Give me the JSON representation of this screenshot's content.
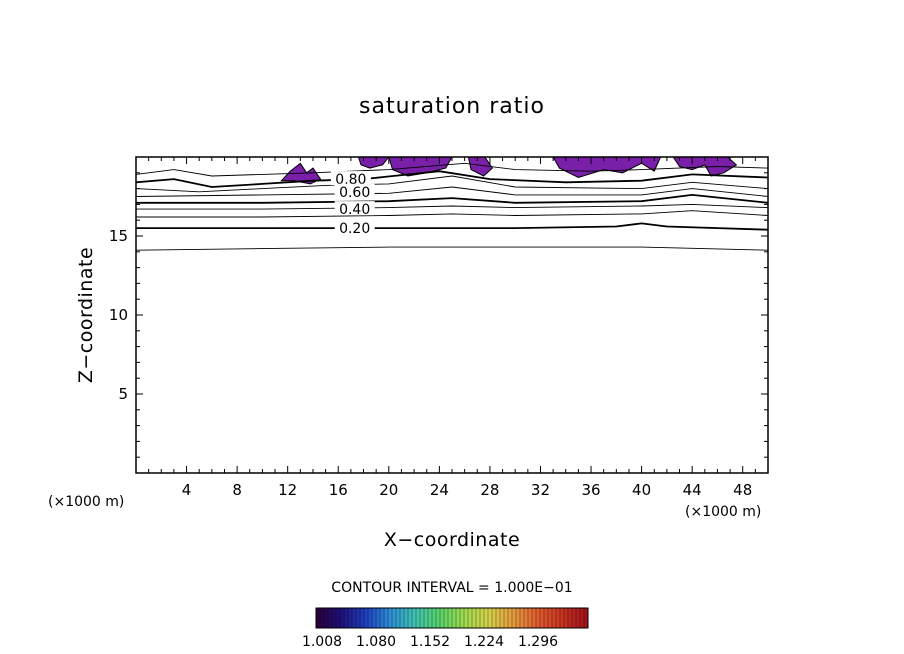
{
  "chart_data": {
    "type": "contour",
    "title": "saturation ratio",
    "xlabel": "X−coordinate",
    "ylabel": "Z−coordinate",
    "x_unit": "(×1000 m)",
    "z_unit": "(×1000 m)",
    "xlim": [
      0,
      50
    ],
    "ylim": [
      0,
      20
    ],
    "x_ticks": [
      4,
      8,
      12,
      16,
      20,
      24,
      28,
      32,
      36,
      40,
      44,
      48
    ],
    "x_tick_labels": [
      "4",
      "8",
      "12",
      "16",
      "20",
      "24",
      "28",
      "32",
      "36",
      "40",
      "44",
      "48"
    ],
    "y_ticks": [
      5,
      10,
      15
    ],
    "y_tick_labels": [
      "5",
      "10",
      "15"
    ],
    "contour_interval_text": "CONTOUR INTERVAL = 1.000E−01",
    "contour_labels": [
      {
        "text": "0.80",
        "x": 17.0,
        "z": 18.6
      },
      {
        "text": "0.60",
        "x": 17.3,
        "z": 17.8
      },
      {
        "text": "0.40",
        "x": 17.3,
        "z": 16.7
      },
      {
        "text": "0.20",
        "x": 17.3,
        "z": 15.5
      }
    ],
    "contours": [
      {
        "level": 0.1,
        "bold": false,
        "points": [
          [
            0,
            14.1
          ],
          [
            10,
            14.2
          ],
          [
            20,
            14.3
          ],
          [
            30,
            14.3
          ],
          [
            40,
            14.3
          ],
          [
            50,
            14.1
          ]
        ]
      },
      {
        "level": 0.2,
        "bold": true,
        "points": [
          [
            0,
            15.5
          ],
          [
            10,
            15.5
          ],
          [
            20,
            15.5
          ],
          [
            30,
            15.5
          ],
          [
            38,
            15.6
          ],
          [
            40,
            15.8
          ],
          [
            42,
            15.6
          ],
          [
            50,
            15.4
          ]
        ]
      },
      {
        "level": 0.3,
        "bold": false,
        "points": [
          [
            0,
            16.2
          ],
          [
            10,
            16.2
          ],
          [
            20,
            16.3
          ],
          [
            25,
            16.4
          ],
          [
            30,
            16.3
          ],
          [
            40,
            16.4
          ],
          [
            44,
            16.6
          ],
          [
            50,
            16.3
          ]
        ]
      },
      {
        "level": 0.4,
        "bold": false,
        "points": [
          [
            0,
            16.7
          ],
          [
            10,
            16.7
          ],
          [
            20,
            16.8
          ],
          [
            25,
            16.9
          ],
          [
            30,
            16.8
          ],
          [
            40,
            16.9
          ],
          [
            44,
            17.0
          ],
          [
            50,
            16.8
          ]
        ]
      },
      {
        "level": 0.5,
        "bold": true,
        "points": [
          [
            0,
            17.1
          ],
          [
            10,
            17.1
          ],
          [
            20,
            17.2
          ],
          [
            25,
            17.4
          ],
          [
            30,
            17.1
          ],
          [
            40,
            17.2
          ],
          [
            44,
            17.6
          ],
          [
            50,
            17.1
          ]
        ]
      },
      {
        "level": 0.6,
        "bold": false,
        "points": [
          [
            0,
            17.5
          ],
          [
            10,
            17.6
          ],
          [
            20,
            17.7
          ],
          [
            25,
            18.1
          ],
          [
            30,
            17.6
          ],
          [
            40,
            17.6
          ],
          [
            44,
            18.0
          ],
          [
            50,
            17.5
          ]
        ]
      },
      {
        "level": 0.7,
        "bold": false,
        "points": [
          [
            0,
            18.0
          ],
          [
            5,
            17.8
          ],
          [
            10,
            18.0
          ],
          [
            15,
            18.2
          ],
          [
            20,
            18.3
          ],
          [
            25,
            18.8
          ],
          [
            30,
            18.1
          ],
          [
            40,
            18.0
          ],
          [
            44,
            18.4
          ],
          [
            50,
            18.0
          ]
        ]
      },
      {
        "level": 0.8,
        "bold": true,
        "points": [
          [
            0,
            18.4
          ],
          [
            3,
            18.6
          ],
          [
            6,
            18.1
          ],
          [
            10,
            18.3
          ],
          [
            14,
            18.5
          ],
          [
            18,
            18.6
          ],
          [
            24,
            19.1
          ],
          [
            28,
            18.6
          ],
          [
            34,
            18.4
          ],
          [
            40,
            18.5
          ],
          [
            44,
            18.9
          ],
          [
            50,
            18.7
          ]
        ]
      },
      {
        "level": 0.9,
        "bold": false,
        "points": [
          [
            0,
            18.9
          ],
          [
            3,
            19.2
          ],
          [
            6,
            18.8
          ],
          [
            10,
            18.9
          ],
          [
            14,
            19.0
          ],
          [
            20,
            19.2
          ],
          [
            26,
            19.6
          ],
          [
            30,
            19.2
          ],
          [
            36,
            19.1
          ],
          [
            40,
            19.2
          ],
          [
            46,
            19.4
          ],
          [
            50,
            19.3
          ]
        ]
      }
    ],
    "supersaturation_regions": [
      {
        "points": [
          [
            11.5,
            18.5
          ],
          [
            12.2,
            19.1
          ],
          [
            13.0,
            19.6
          ],
          [
            13.5,
            19.0
          ],
          [
            14.0,
            19.3
          ],
          [
            14.6,
            18.6
          ],
          [
            13.8,
            18.3
          ],
          [
            12.5,
            18.5
          ]
        ]
      },
      {
        "points": [
          [
            17.6,
            20
          ],
          [
            17.8,
            19.5
          ],
          [
            18.5,
            19.3
          ],
          [
            19.5,
            19.5
          ],
          [
            20.0,
            20
          ]
        ]
      },
      {
        "points": [
          [
            20.0,
            20
          ],
          [
            20.3,
            19.2
          ],
          [
            21.5,
            18.8
          ],
          [
            23.0,
            19.0
          ],
          [
            24.5,
            19.3
          ],
          [
            25.0,
            20
          ]
        ]
      },
      {
        "points": [
          [
            26.3,
            20
          ],
          [
            26.5,
            19.2
          ],
          [
            27.5,
            18.8
          ],
          [
            28.2,
            19.3
          ],
          [
            27.6,
            20
          ]
        ]
      },
      {
        "points": [
          [
            33.0,
            20
          ],
          [
            33.5,
            19.3
          ],
          [
            35.0,
            18.7
          ],
          [
            37.0,
            19.2
          ],
          [
            38.5,
            19.0
          ],
          [
            40.0,
            19.6
          ],
          [
            41.0,
            19.1
          ],
          [
            41.5,
            20
          ]
        ]
      },
      {
        "points": [
          [
            42.5,
            20
          ],
          [
            43.0,
            19.4
          ],
          [
            44.0,
            19.2
          ],
          [
            45.0,
            19.5
          ],
          [
            45.5,
            18.8
          ],
          [
            46.5,
            19.0
          ],
          [
            47.5,
            19.5
          ],
          [
            46.8,
            20
          ]
        ]
      }
    ],
    "colorbar": {
      "tick_labels": [
        "1.008",
        "1.080",
        "1.152",
        "1.224",
        "1.296"
      ],
      "colors": [
        "#2b0038",
        "#1e0f7a",
        "#1f3fbf",
        "#2d8fd8",
        "#3fc2b2",
        "#58d36a",
        "#9fdc4f",
        "#d6d24a",
        "#e59a3f",
        "#e05a2e",
        "#c83120",
        "#a01018"
      ]
    }
  }
}
